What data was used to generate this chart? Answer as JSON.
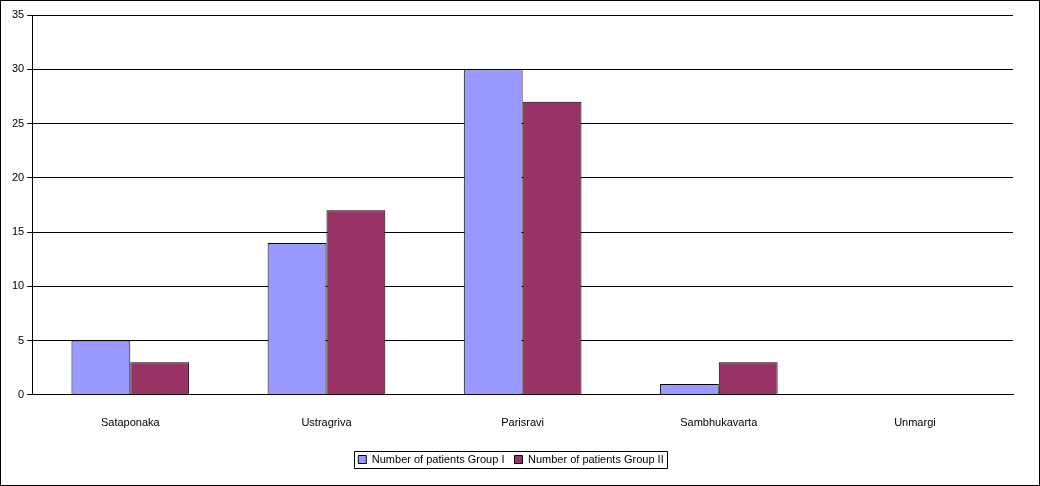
{
  "chart_data": {
    "type": "bar",
    "categories": [
      "Sataponaka",
      "Ustragriva",
      "Parisravi",
      "Sambhukavarta",
      "Unmargi"
    ],
    "series": [
      {
        "name": "Number of patients Group I",
        "color": "#9999ff",
        "values": [
          5,
          14,
          30,
          1,
          0
        ]
      },
      {
        "name": "Number of patients Group II",
        "color": "#993366",
        "values": [
          3,
          17,
          27,
          3,
          0
        ]
      }
    ],
    "ylim": [
      0,
      35
    ],
    "yticks": [
      0,
      5,
      10,
      15,
      20,
      25,
      30,
      35
    ],
    "grid": "y",
    "legend": "bottom"
  }
}
